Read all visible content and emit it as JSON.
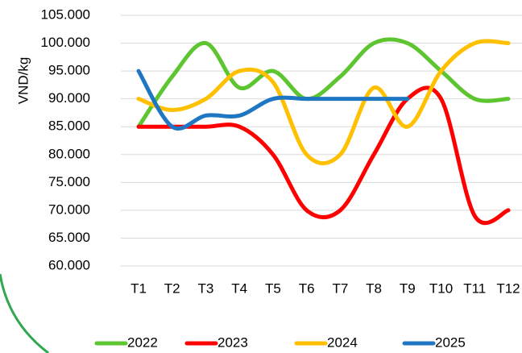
{
  "chart_data": {
    "type": "line",
    "y_label": "VND/kg",
    "categories": [
      "T1",
      "T2",
      "T3",
      "T4",
      "T5",
      "T6",
      "T7",
      "T8",
      "T9",
      "T10",
      "T11",
      "T12"
    ],
    "series": [
      {
        "name": "2022",
        "color": "#5cc530",
        "values": [
          85000,
          94000,
          100000,
          92000,
          95000,
          90000,
          94000,
          100000,
          100000,
          95000,
          90000,
          90000
        ]
      },
      {
        "name": "2023",
        "color": "#ff0000",
        "values": [
          85000,
          85000,
          85000,
          85000,
          80000,
          70000,
          70000,
          80000,
          90000,
          90000,
          69000,
          70000
        ]
      },
      {
        "name": "2024",
        "color": "#ffc000",
        "values": [
          90000,
          88000,
          90000,
          95000,
          93000,
          80000,
          80000,
          92000,
          85000,
          95000,
          100000,
          100000
        ]
      },
      {
        "name": "2025",
        "color": "#1f77c4",
        "values": [
          95000,
          85000,
          87000,
          87000,
          90000,
          90000,
          90000,
          90000,
          90000,
          null,
          null,
          null
        ]
      }
    ],
    "ylim": [
      60000,
      105000
    ],
    "yticks": [
      {
        "value": 60000,
        "label": "60.000"
      },
      {
        "value": 65000,
        "label": "65.000"
      },
      {
        "value": 70000,
        "label": "70.000"
      },
      {
        "value": 75000,
        "label": "75.000"
      },
      {
        "value": 80000,
        "label": "80.000"
      },
      {
        "value": 85000,
        "label": "85.000"
      },
      {
        "value": 90000,
        "label": "90.000"
      },
      {
        "value": 95000,
        "label": "95.000"
      },
      {
        "value": 100000,
        "label": "100.000"
      },
      {
        "value": 105000,
        "label": "105.000"
      }
    ],
    "grid": true,
    "legend": "bottom"
  }
}
